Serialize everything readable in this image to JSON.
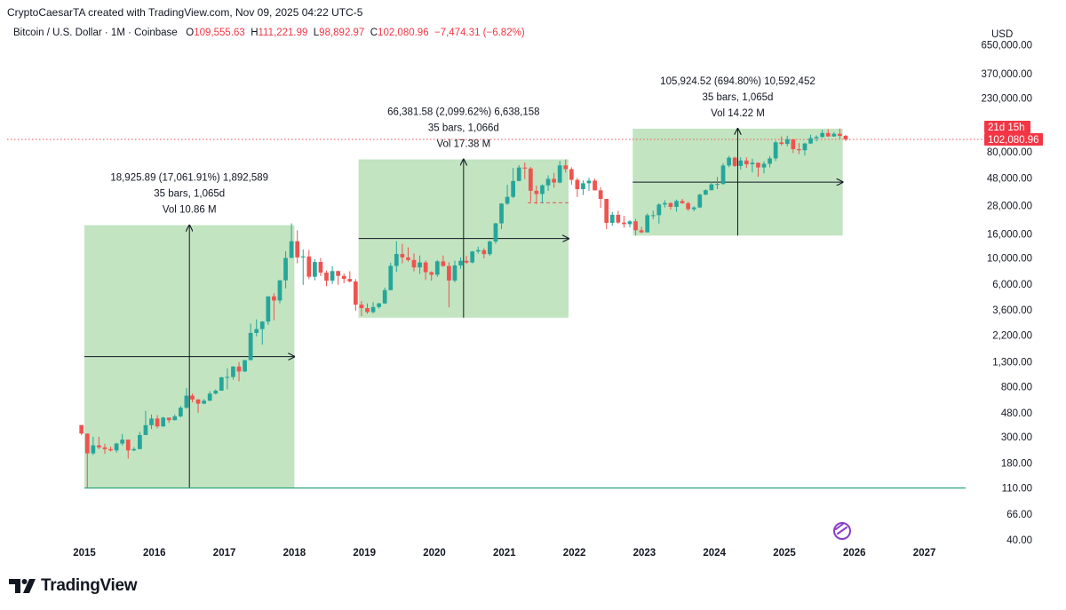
{
  "header": {
    "created_by": "CryptoCaesarTA created with TradingView.com, Nov 09, 2025 04:22 UTC-5"
  },
  "symbol_bar": {
    "title": "Bitcoin / U.S. Dollar · 1M · Coinbase",
    "o_label": "O",
    "o_value": "109,555.63",
    "h_label": "H",
    "h_value": "111,221.99",
    "l_label": "L",
    "l_value": "98,892.97",
    "c_label": "C",
    "c_value": "102,080.96",
    "change": "−7,474.31 (−6.82%)"
  },
  "currency": "USD",
  "price_tag": {
    "countdown": "21d 15h",
    "price": "102,080.96",
    "color": "#f23645"
  },
  "brand": {
    "name": "TradingView"
  },
  "colors": {
    "up": "#26a69a",
    "down": "#ef5350",
    "box_fill": "#b7dfb6",
    "support": "#2fa57a"
  },
  "chart_data": {
    "type": "candlestick",
    "scale": "log",
    "y_axis_labels": [
      "650,000.00",
      "370,000.00",
      "230,000.00",
      "80,000.00",
      "48,000.00",
      "28,000.00",
      "16,000.00",
      "10,000.00",
      "6,000.00",
      "3,600.00",
      "2,200.00",
      "1,300.00",
      "800.00",
      "480.00",
      "300.00",
      "180.00",
      "110.00",
      "66.00",
      "40.00"
    ],
    "x_axis_labels": [
      "2015",
      "2016",
      "2017",
      "2018",
      "2019",
      "2020",
      "2021",
      "2022",
      "2023",
      "2024",
      "2025",
      "2026",
      "2027"
    ],
    "ylim": [
      40,
      650000
    ],
    "current_price": 102080.96,
    "support_line": 110,
    "range_boxes": [
      {
        "line1": "18,925.89 (17,061.91%) 1,892,589",
        "line2": "35 bars, 1,065d",
        "line3": "Vol 10.86 M",
        "start": "2015-01",
        "end": "2017-12",
        "low": 110,
        "high": 19000
      },
      {
        "line1": "66,381.58 (2,099.62%) 6,638,158",
        "line2": "35 bars, 1,066d",
        "line3": "Vol 17.38 M",
        "start": "2018-12",
        "end": "2021-11",
        "low": 3100,
        "high": 69000
      },
      {
        "line1": "105,924.52 (694.80%) 10,592,452",
        "line2": "35 bars, 1,065d",
        "line3": "Vol 14.22 M",
        "start": "2022-11",
        "end": "2025-10",
        "low": 15500,
        "high": 126000
      }
    ],
    "candles": [
      [
        "2014-12",
        378,
        378,
        310,
        320
      ],
      [
        "2015-01",
        320,
        320,
        110,
        217
      ],
      [
        "2015-02",
        217,
        300,
        210,
        254
      ],
      [
        "2015-03",
        254,
        300,
        235,
        244
      ],
      [
        "2015-04",
        244,
        262,
        215,
        236
      ],
      [
        "2015-05",
        236,
        248,
        225,
        230
      ],
      [
        "2015-06",
        230,
        267,
        220,
        263
      ],
      [
        "2015-07",
        263,
        318,
        253,
        284
      ],
      [
        "2015-08",
        284,
        285,
        196,
        230
      ],
      [
        "2015-09",
        230,
        245,
        226,
        236
      ],
      [
        "2015-10",
        236,
        330,
        235,
        311
      ],
      [
        "2015-11",
        311,
        500,
        310,
        377
      ],
      [
        "2015-12",
        377,
        465,
        350,
        430
      ],
      [
        "2016-01",
        430,
        460,
        355,
        368
      ],
      [
        "2016-02",
        368,
        445,
        365,
        437
      ],
      [
        "2016-03",
        437,
        437,
        395,
        416
      ],
      [
        "2016-04",
        416,
        465,
        414,
        448
      ],
      [
        "2016-05",
        448,
        550,
        440,
        531
      ],
      [
        "2016-06",
        531,
        780,
        520,
        673
      ],
      [
        "2016-07",
        673,
        700,
        590,
        624
      ],
      [
        "2016-08",
        624,
        630,
        480,
        575
      ],
      [
        "2016-09",
        575,
        630,
        570,
        609
      ],
      [
        "2016-10",
        609,
        735,
        605,
        700
      ],
      [
        "2016-11",
        700,
        760,
        690,
        742
      ],
      [
        "2016-12",
        742,
        970,
        740,
        964
      ],
      [
        "2017-01",
        964,
        1150,
        760,
        970
      ],
      [
        "2017-02",
        970,
        1200,
        920,
        1190
      ],
      [
        "2017-03",
        1190,
        1300,
        890,
        1080
      ],
      [
        "2017-04",
        1080,
        1350,
        1070,
        1350
      ],
      [
        "2017-05",
        1350,
        2760,
        1340,
        2300
      ],
      [
        "2017-06",
        2300,
        3000,
        2150,
        2480
      ],
      [
        "2017-07",
        2480,
        2900,
        1830,
        2875
      ],
      [
        "2017-08",
        2875,
        4700,
        2700,
        4710
      ],
      [
        "2017-09",
        4710,
        5000,
        2950,
        4340
      ],
      [
        "2017-10",
        4340,
        6460,
        4100,
        6450
      ],
      [
        "2017-11",
        6450,
        11400,
        5500,
        10000
      ],
      [
        "2017-12",
        10000,
        19700,
        10000,
        13880
      ],
      [
        "2018-01",
        13880,
        17200,
        9000,
        10100
      ],
      [
        "2018-02",
        10100,
        11800,
        5900,
        10300
      ],
      [
        "2018-03",
        10300,
        11700,
        6600,
        6920
      ],
      [
        "2018-04",
        6920,
        9800,
        6450,
        9240
      ],
      [
        "2018-05",
        9240,
        10000,
        7000,
        7500
      ],
      [
        "2018-06",
        7500,
        7800,
        5750,
        6400
      ],
      [
        "2018-07",
        6400,
        8500,
        6000,
        7730
      ],
      [
        "2018-08",
        7730,
        7800,
        5900,
        7030
      ],
      [
        "2018-09",
        7030,
        7400,
        6100,
        6630
      ],
      [
        "2018-10",
        6630,
        7700,
        6200,
        6300
      ],
      [
        "2018-11",
        6300,
        6600,
        3550,
        4000
      ],
      [
        "2018-12",
        4000,
        4300,
        3200,
        3740
      ],
      [
        "2019-01",
        3740,
        4100,
        3350,
        3460
      ],
      [
        "2019-02",
        3460,
        4200,
        3370,
        3820
      ],
      [
        "2019-03",
        3820,
        4150,
        3700,
        4100
      ],
      [
        "2019-04",
        4100,
        5600,
        4050,
        5320
      ],
      [
        "2019-05",
        5320,
        9100,
        5300,
        8560
      ],
      [
        "2019-06",
        8560,
        13900,
        7600,
        10800
      ],
      [
        "2019-07",
        10800,
        13200,
        9000,
        10100
      ],
      [
        "2019-08",
        10100,
        12300,
        9300,
        9600
      ],
      [
        "2019-09",
        9600,
        10900,
        7700,
        8300
      ],
      [
        "2019-10",
        8300,
        10500,
        7300,
        9150
      ],
      [
        "2019-11",
        9150,
        9500,
        6500,
        7560
      ],
      [
        "2019-12",
        7560,
        7700,
        6400,
        7200
      ],
      [
        "2020-01",
        7200,
        9600,
        6900,
        9350
      ],
      [
        "2020-02",
        9350,
        10500,
        8400,
        8550
      ],
      [
        "2020-03",
        8550,
        9200,
        3800,
        6420
      ],
      [
        "2020-04",
        6420,
        9470,
        6200,
        8640
      ],
      [
        "2020-05",
        8640,
        10100,
        8100,
        9450
      ],
      [
        "2020-06",
        9450,
        10400,
        8900,
        9140
      ],
      [
        "2020-07",
        9140,
        11500,
        9000,
        11350
      ],
      [
        "2020-08",
        11350,
        12470,
        10900,
        11650
      ],
      [
        "2020-09",
        11650,
        12100,
        9900,
        10780
      ],
      [
        "2020-10",
        10780,
        14100,
        10400,
        13800
      ],
      [
        "2020-11",
        13800,
        19900,
        13200,
        19700
      ],
      [
        "2020-12",
        19700,
        29300,
        17600,
        29000
      ],
      [
        "2021-01",
        29000,
        42000,
        28300,
        33100
      ],
      [
        "2021-02",
        33100,
        58400,
        32300,
        45200
      ],
      [
        "2021-03",
        45200,
        61800,
        45000,
        58800
      ],
      [
        "2021-04",
        58800,
        64900,
        47000,
        57700
      ],
      [
        "2021-05",
        57700,
        59500,
        30000,
        37300
      ],
      [
        "2021-06",
        37300,
        41300,
        28800,
        35000
      ],
      [
        "2021-07",
        35000,
        42300,
        29300,
        41500
      ],
      [
        "2021-08",
        41500,
        50500,
        37300,
        47100
      ],
      [
        "2021-09",
        47100,
        52900,
        39600,
        43800
      ],
      [
        "2021-10",
        43800,
        67000,
        43200,
        61300
      ],
      [
        "2021-11",
        61300,
        69000,
        53300,
        57000
      ],
      [
        "2021-12",
        57000,
        59100,
        42000,
        46200
      ],
      [
        "2022-01",
        46200,
        48000,
        33000,
        38500
      ],
      [
        "2022-02",
        38500,
        45800,
        34300,
        43200
      ],
      [
        "2022-03",
        43200,
        48200,
        37200,
        45500
      ],
      [
        "2022-04",
        45500,
        47400,
        37700,
        37600
      ],
      [
        "2022-05",
        37600,
        40000,
        26700,
        31800
      ],
      [
        "2022-06",
        31800,
        31900,
        17600,
        19900
      ],
      [
        "2022-07",
        19900,
        24600,
        18800,
        23300
      ],
      [
        "2022-08",
        23300,
        25200,
        19600,
        20000
      ],
      [
        "2022-09",
        20000,
        22800,
        18100,
        19400
      ],
      [
        "2022-10",
        19400,
        21000,
        18200,
        20500
      ],
      [
        "2022-11",
        20500,
        21500,
        15500,
        17200
      ],
      [
        "2022-12",
        17200,
        18400,
        16300,
        16500
      ],
      [
        "2023-01",
        16500,
        23900,
        16500,
        23100
      ],
      [
        "2023-02",
        23100,
        25300,
        21400,
        23100
      ],
      [
        "2023-03",
        23100,
        29200,
        19600,
        28500
      ],
      [
        "2023-04",
        28500,
        31000,
        26900,
        29300
      ],
      [
        "2023-05",
        29300,
        29800,
        25800,
        27200
      ],
      [
        "2023-06",
        27200,
        31400,
        24800,
        30500
      ],
      [
        "2023-07",
        30500,
        31800,
        28900,
        29200
      ],
      [
        "2023-08",
        29200,
        30200,
        25200,
        26000
      ],
      [
        "2023-09",
        26000,
        27500,
        24900,
        26900
      ],
      [
        "2023-10",
        26900,
        35200,
        26600,
        34600
      ],
      [
        "2023-11",
        34600,
        38400,
        34100,
        37700
      ],
      [
        "2023-12",
        37700,
        44700,
        37600,
        42300
      ],
      [
        "2024-01",
        42300,
        48900,
        38500,
        42600
      ],
      [
        "2024-02",
        42600,
        64000,
        41900,
        61200
      ],
      [
        "2024-03",
        61200,
        73800,
        59300,
        71300
      ],
      [
        "2024-04",
        71300,
        72700,
        59600,
        60700
      ],
      [
        "2024-05",
        60700,
        71900,
        56600,
        67500
      ],
      [
        "2024-06",
        67500,
        71900,
        58500,
        62700
      ],
      [
        "2024-07",
        62700,
        70000,
        53500,
        64600
      ],
      [
        "2024-08",
        64600,
        65000,
        49000,
        58900
      ],
      [
        "2024-09",
        58900,
        66500,
        52600,
        63300
      ],
      [
        "2024-10",
        63300,
        73600,
        58900,
        70300
      ],
      [
        "2024-11",
        70300,
        99600,
        66800,
        96400
      ],
      [
        "2024-12",
        96400,
        108300,
        90500,
        93400
      ],
      [
        "2025-01",
        93400,
        109600,
        89200,
        102400
      ],
      [
        "2025-02",
        102400,
        102500,
        78200,
        84300
      ],
      [
        "2025-03",
        84300,
        95000,
        76600,
        82500
      ],
      [
        "2025-04",
        82500,
        95800,
        74500,
        94200
      ],
      [
        "2025-05",
        94200,
        111900,
        93400,
        104600
      ],
      [
        "2025-06",
        104600,
        110500,
        98200,
        107100
      ],
      [
        "2025-07",
        107100,
        123200,
        105100,
        115700
      ],
      [
        "2025-08",
        115700,
        124500,
        107300,
        108200
      ],
      [
        "2025-09",
        108200,
        117900,
        107300,
        114000
      ],
      [
        "2025-10",
        114000,
        126200,
        103500,
        109556
      ],
      [
        "2025-11",
        109556,
        111222,
        98893,
        102081
      ]
    ]
  }
}
